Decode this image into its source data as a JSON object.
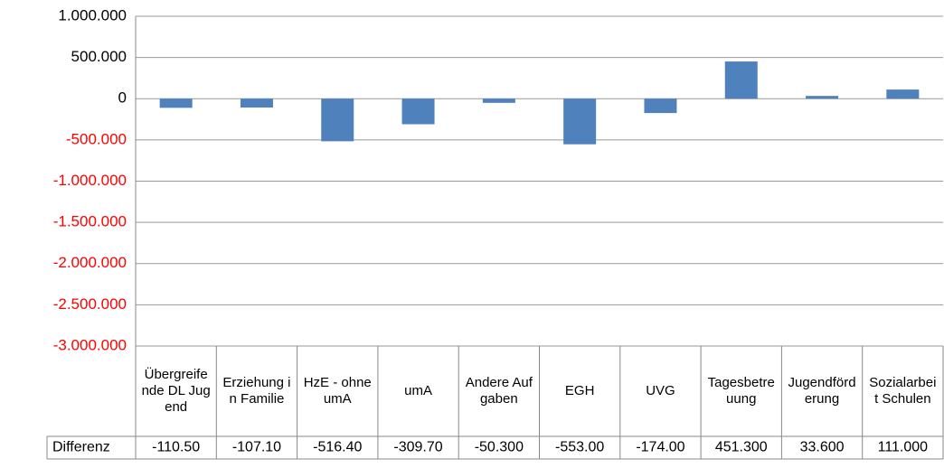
{
  "chart_data": {
    "type": "bar",
    "categories": [
      "Übergreifende DL Jugend",
      "Erziehung in Familie",
      "HzE - ohne umA",
      "umA",
      "Andere Aufgaben",
      "EGH",
      "UVG",
      "Tagesbetreuung",
      "Jugendförderung",
      "Sozialarbeit Schulen"
    ],
    "series": [
      {
        "name": "Differenz",
        "color": "#4f81bd",
        "values": [
          -110500,
          -107100,
          -516400,
          -309700,
          -50300,
          -553000,
          -174000,
          451300,
          33600,
          111000
        ],
        "value_labels": [
          "-110.50",
          "-107.10",
          "-516.40",
          "-309.70",
          "-50.300",
          "-553.00",
          "-174.00",
          "451.300",
          "33.600",
          "111.000"
        ]
      }
    ],
    "ylim": [
      -3000000,
      1000000
    ],
    "yticks": [
      {
        "value": -3000000,
        "label": "-3.000.000"
      },
      {
        "value": -2500000,
        "label": "-2.500.000"
      },
      {
        "value": -2000000,
        "label": "-2.000.000"
      },
      {
        "value": -1500000,
        "label": "-1.500.000"
      },
      {
        "value": -1000000,
        "label": "-1.000.000"
      },
      {
        "value": -500000,
        "label": "-500.000"
      },
      0,
      {
        "value": 500000,
        "label": "500.000"
      },
      {
        "value": 1000000,
        "label": "1.000.000"
      }
    ],
    "grid": true,
    "negative_tick_color": "#ff0000",
    "data_table": true
  }
}
